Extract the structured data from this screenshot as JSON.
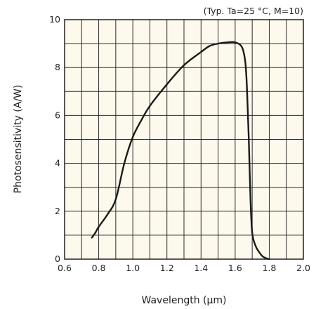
{
  "chart_data": {
    "type": "line",
    "note": "(Typ. Ta=25 °C, M=10)",
    "xlabel": "Wavelength (μm)",
    "ylabel": "Photosensitivity (A/W)",
    "xlim": [
      0.6,
      2.0
    ],
    "ylim": [
      0,
      10
    ],
    "xticks": [
      "0.6",
      "0.8",
      "1.0",
      "1.2",
      "1.4",
      "1.6",
      "1.8",
      "2.0"
    ],
    "yticks": [
      "0",
      "2",
      "4",
      "6",
      "8",
      "10"
    ],
    "grid": true,
    "plot_background": "#fdf9ec",
    "line_color": "#1a1a1a",
    "series": [
      {
        "x": [
          0.76,
          0.78,
          0.8,
          0.85,
          0.9,
          0.95,
          1.0,
          1.05,
          1.1,
          1.2,
          1.3,
          1.4,
          1.45,
          1.5,
          1.55,
          1.6,
          1.64,
          1.66,
          1.67,
          1.68,
          1.69,
          1.7,
          1.72,
          1.74,
          1.76,
          1.78,
          1.8
        ],
        "y": [
          0.9,
          1.1,
          1.35,
          1.85,
          2.5,
          4.0,
          5.1,
          5.8,
          6.4,
          7.3,
          8.1,
          8.65,
          8.9,
          9.0,
          9.05,
          9.05,
          8.85,
          8.2,
          7.0,
          5.0,
          2.5,
          1.1,
          0.55,
          0.3,
          0.12,
          0.04,
          0.0
        ]
      }
    ]
  }
}
